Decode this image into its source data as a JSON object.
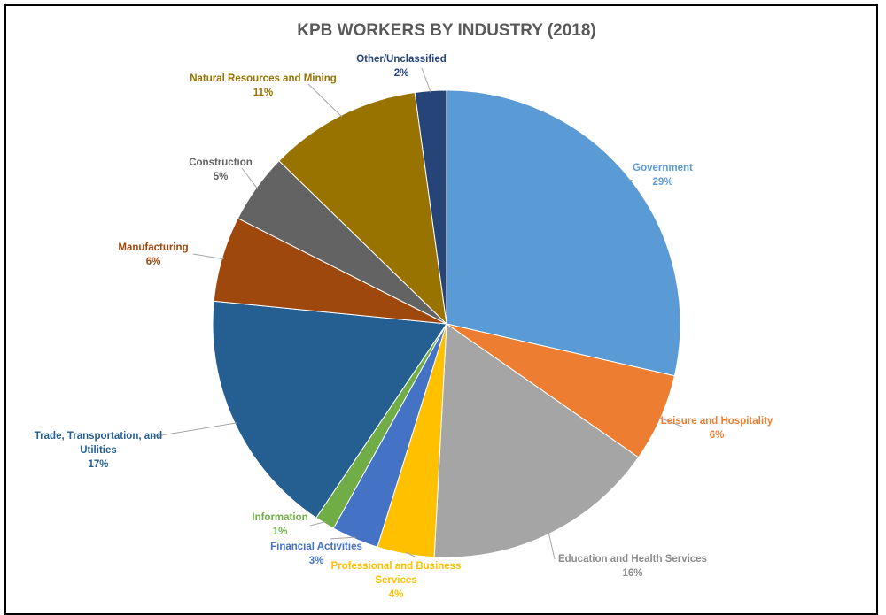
{
  "chart_data": {
    "type": "pie",
    "title": "KPB WORKERS BY INDUSTRY (2018)",
    "slices": [
      {
        "name": "Government",
        "percent_label": "29%",
        "value": 29,
        "color": "#5b9bd5"
      },
      {
        "name": "Leisure and Hospitality",
        "percent_label": "6%",
        "value": 6.2,
        "color": "#ed7d31"
      },
      {
        "name": "Education and Health Services",
        "percent_label": "16%",
        "value": 16.4,
        "color": "#a5a5a5"
      },
      {
        "name": "Professional and Business Services",
        "percent_label": "4%",
        "value": 4,
        "color": "#ffc000"
      },
      {
        "name": "Financial Activities",
        "percent_label": "3%",
        "value": 3.3,
        "color": "#4472c4"
      },
      {
        "name": "Information",
        "percent_label": "1%",
        "value": 1.4,
        "color": "#70ad47"
      },
      {
        "name": "Trade, Transportation, and Utilities",
        "percent_label": "17%",
        "value": 17.4,
        "color": "#255e91"
      },
      {
        "name": "Manufacturing",
        "percent_label": "6%",
        "value": 6,
        "color": "#9e480e"
      },
      {
        "name": "Construction",
        "percent_label": "5%",
        "value": 4.9,
        "color": "#636363"
      },
      {
        "name": "Natural Resources and Mining",
        "percent_label": "11%",
        "value": 10.7,
        "color": "#997300"
      },
      {
        "name": "Other/Unclassified",
        "percent_label": "2%",
        "value": 2.2,
        "color": "#264478"
      }
    ],
    "label_lines": {
      "Trade, Transportation, and Utilities": [
        "Trade, Transportation, and",
        "Utilities"
      ],
      "Professional and Business Services": [
        "Professional and Business",
        "Services"
      ]
    }
  }
}
